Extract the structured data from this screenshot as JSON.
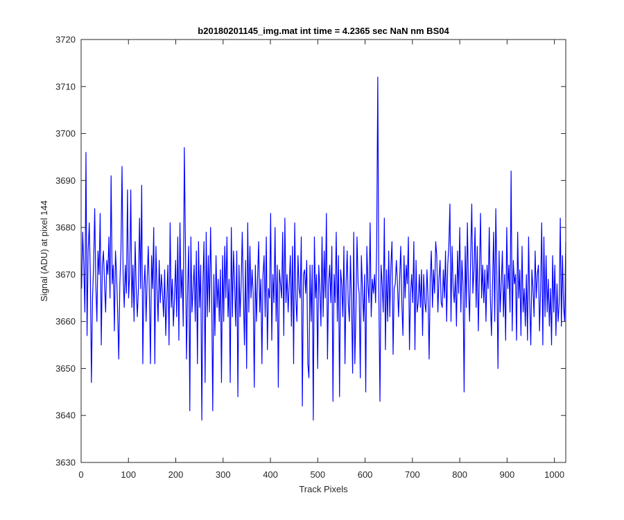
{
  "chart_data": {
    "type": "line",
    "title": "b20180201145_img.mat int time = 4.2365 sec  NaN nm BS04",
    "xlabel": "Track Pixels",
    "ylabel": "Signal (ADU) at pixel 144",
    "xlim": [
      0,
      1024
    ],
    "ylim": [
      3630,
      3720
    ],
    "xticks": [
      0,
      100,
      200,
      300,
      400,
      500,
      600,
      700,
      800,
      900,
      1000
    ],
    "yticks": [
      3630,
      3640,
      3650,
      3660,
      3670,
      3680,
      3690,
      3700,
      3710,
      3720
    ],
    "grid": false,
    "series_color": "#0000ff",
    "series": [
      {
        "values": [
          3667,
          3679,
          3672,
          3662,
          3696,
          3657,
          3675,
          3681,
          3670,
          3647,
          3665,
          3672,
          3684,
          3668,
          3660,
          3675,
          3670,
          3683,
          3655,
          3672,
          3675,
          3668,
          3662,
          3673,
          3670,
          3678,
          3665,
          3691,
          3668,
          3672,
          3658,
          3675,
          3670,
          3662,
          3652,
          3668,
          3675,
          3693,
          3670,
          3663,
          3672,
          3666,
          3688,
          3665,
          3670,
          3688,
          3663,
          3672,
          3660,
          3677,
          3667,
          3661,
          3667,
          3682,
          3667,
          3689,
          3651,
          3667,
          3672,
          3660,
          3669,
          3676,
          3666,
          3651,
          3674,
          3667,
          3680,
          3651,
          3676,
          3667,
          3660,
          3673,
          3664,
          3670,
          3666,
          3661,
          3671,
          3657,
          3665,
          3672,
          3655,
          3681,
          3663,
          3669,
          3659,
          3665,
          3673,
          3661,
          3678,
          3656,
          3681,
          3665,
          3671,
          3659,
          3697,
          3677,
          3652,
          3667,
          3676,
          3641,
          3678,
          3662,
          3667,
          3672,
          3660,
          3675,
          3651,
          3677,
          3663,
          3672,
          3639,
          3668,
          3677,
          3647,
          3679,
          3661,
          3674,
          3662,
          3680,
          3666,
          3641,
          3670,
          3657,
          3674,
          3663,
          3669,
          3660,
          3671,
          3647,
          3674,
          3660,
          3676,
          3665,
          3678,
          3661,
          3669,
          3647,
          3680,
          3661,
          3675,
          3668,
          3659,
          3675,
          3644,
          3672,
          3661,
          3668,
          3679,
          3666,
          3655,
          3673,
          3650,
          3681,
          3662,
          3676,
          3665,
          3671,
          3666,
          3646,
          3672,
          3660,
          3669,
          3677,
          3662,
          3669,
          3651,
          3670,
          3674,
          3661,
          3678,
          3654,
          3667,
          3665,
          3683,
          3656,
          3670,
          3664,
          3680,
          3660,
          3672,
          3646,
          3671,
          3668,
          3665,
          3679,
          3657,
          3682,
          3664,
          3670,
          3662,
          3668,
          3674,
          3659,
          3676,
          3651,
          3681,
          3665,
          3660,
          3674,
          3667,
          3665,
          3678,
          3642,
          3670,
          3671,
          3666,
          3673,
          3651,
          3648,
          3672,
          3660,
          3672,
          3639,
          3678,
          3665,
          3670,
          3650,
          3672,
          3667,
          3659,
          3678,
          3661,
          3675,
          3665,
          3683,
          3652,
          3668,
          3672,
          3664,
          3676,
          3643,
          3670,
          3664,
          3679,
          3660,
          3674,
          3644,
          3671,
          3668,
          3661,
          3676,
          3651,
          3668,
          3675,
          3664,
          3660,
          3674,
          3664,
          3649,
          3679,
          3651,
          3662,
          3678,
          3668,
          3666,
          3648,
          3674,
          3667,
          3660,
          3670,
          3645,
          3676,
          3668,
          3664,
          3681,
          3661,
          3669,
          3666,
          3670,
          3664,
          3676,
          3712,
          3665,
          3643,
          3672,
          3668,
          3662,
          3682,
          3654,
          3671,
          3660,
          3675,
          3661,
          3672,
          3677,
          3653,
          3667,
          3668,
          3673,
          3668,
          3661,
          3669,
          3676,
          3664,
          3657,
          3674,
          3665,
          3672,
          3668,
          3678,
          3654,
          3666,
          3670,
          3664,
          3677,
          3654,
          3673,
          3662,
          3664,
          3670,
          3663,
          3671,
          3657,
          3670,
          3664,
          3662,
          3671,
          3665,
          3652,
          3669,
          3675,
          3663,
          3671,
          3666,
          3677,
          3674,
          3662,
          3669,
          3673,
          3664,
          3663,
          3671,
          3665,
          3675,
          3660,
          3672,
          3676,
          3685,
          3660,
          3676,
          3667,
          3664,
          3670,
          3659,
          3675,
          3666,
          3680,
          3662,
          3673,
          3668,
          3645,
          3676,
          3663,
          3681,
          3667,
          3660,
          3674,
          3685,
          3666,
          3671,
          3680,
          3663,
          3676,
          3658,
          3670,
          3683,
          3665,
          3672,
          3664,
          3671,
          3660,
          3672,
          3667,
          3680,
          3665,
          3657,
          3668,
          3679,
          3660,
          3684,
          3669,
          3650,
          3675,
          3662,
          3668,
          3675,
          3661,
          3670,
          3656,
          3680,
          3667,
          3672,
          3662,
          3692,
          3658,
          3673,
          3668,
          3670,
          3656,
          3679,
          3665,
          3671,
          3657,
          3676,
          3662,
          3667,
          3659,
          3670,
          3656,
          3678,
          3664,
          3655,
          3671,
          3667,
          3661,
          3675,
          3665,
          3670,
          3672,
          3658,
          3667,
          3681,
          3655,
          3678,
          3661,
          3674,
          3662,
          3669,
          3659,
          3667,
          3655,
          3674,
          3662,
          3672,
          3657,
          3668,
          3660,
          3664,
          3682,
          3659,
          3674,
          3663,
          3660,
          3677
        ]
      }
    ]
  }
}
